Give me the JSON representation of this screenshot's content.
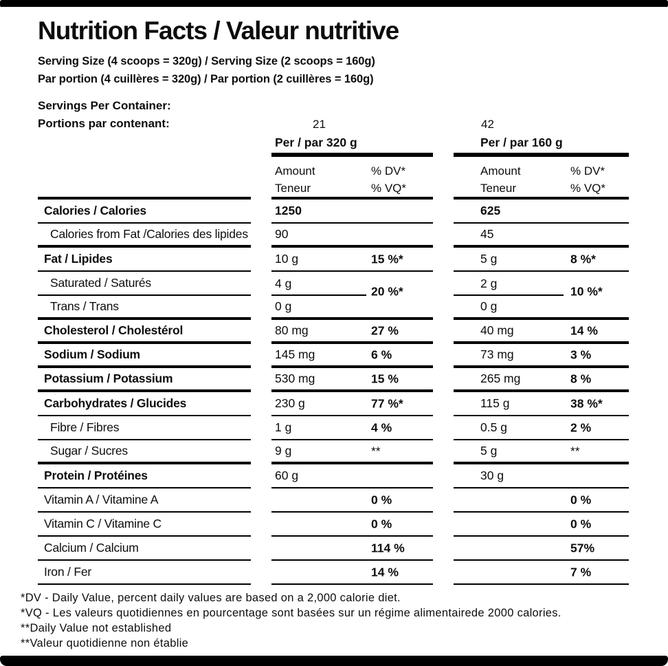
{
  "title": "Nutrition Facts / Valeur nutritive",
  "serving": {
    "line_en": "Serving Size (4 scoops = 320g) / Serving Size (2 scoops = 160g)",
    "line_fr": "Par portion (4 cuillères = 320g) / Par portion (2 cuillères = 160g)"
  },
  "servings": {
    "label_en": "Servings Per Container:",
    "label_fr": "Portions par contenant:",
    "col1": "21",
    "col2": "42"
  },
  "columns": {
    "col1": {
      "per": "Per / par 320 g",
      "amount_line1": "Amount",
      "amount_line2": "Teneur",
      "dv_line1": "% DV*",
      "dv_line2": "% VQ*"
    },
    "col2": {
      "per": "Per / par 160 g",
      "amount_line1": "Amount",
      "amount_line2": "Teneur",
      "dv_line1": "% DV*",
      "dv_line2": "% VQ*"
    }
  },
  "rows": [
    {
      "label": "Calories / Calories",
      "c1a": "1250",
      "c1d": "",
      "c2a": "625",
      "c2d": ""
    },
    {
      "label": "Calories from Fat /Calories des lipides",
      "c1a": "90",
      "c1d": "",
      "c2a": "45",
      "c2d": ""
    },
    {
      "label": "Fat / Lipides",
      "c1a": "10 g",
      "c1d": "15 %*",
      "c2a": "5 g",
      "c2d": "8 %*"
    },
    {
      "label": "Saturated / Saturés",
      "c1a": "4 g",
      "c1d": "20 %*",
      "c2a": "2 g",
      "c2d": "10 %*"
    },
    {
      "label": "Trans / Trans",
      "c1a": "0 g",
      "c1d": "",
      "c2a": "0 g",
      "c2d": ""
    },
    {
      "label": "Cholesterol / Cholestérol",
      "c1a": "80 mg",
      "c1d": "27 %",
      "c2a": "40 mg",
      "c2d": "14 %"
    },
    {
      "label": "Sodium / Sodium",
      "c1a": "145 mg",
      "c1d": "6 %",
      "c2a": "73 mg",
      "c2d": "3 %"
    },
    {
      "label": "Potassium / Potassium",
      "c1a": "530 mg",
      "c1d": "15 %",
      "c2a": "265 mg",
      "c2d": "8 %"
    },
    {
      "label": "Carbohydrates / Glucides",
      "c1a": "230 g",
      "c1d": "77 %*",
      "c2a": "115 g",
      "c2d": "38 %*"
    },
    {
      "label": "Fibre / Fibres",
      "c1a": "1 g",
      "c1d": "4 %",
      "c2a": "0.5 g",
      "c2d": "2 %"
    },
    {
      "label": "Sugar / Sucres",
      "c1a": "9 g",
      "c1d": "**",
      "c2a": "5 g",
      "c2d": "**"
    },
    {
      "label": "Protein / Protéines",
      "c1a": "60 g",
      "c1d": "",
      "c2a": "30 g",
      "c2d": ""
    },
    {
      "label": "Vitamin A / Vitamine A",
      "c1a": "",
      "c1d": "0 %",
      "c2a": "",
      "c2d": "0 %"
    },
    {
      "label": "Vitamin C / Vitamine C",
      "c1a": "",
      "c1d": "0 %",
      "c2a": "",
      "c2d": "0 %"
    },
    {
      "label": "Calcium / Calcium",
      "c1a": "",
      "c1d": "114 %",
      "c2a": "",
      "c2d": "57%"
    },
    {
      "label": "Iron / Fer",
      "c1a": "",
      "c1d": "14 %",
      "c2a": "",
      "c2d": "7 %"
    }
  ],
  "footnotes": [
    "*DV - Daily Value, percent daily values are based on a 2,000 calorie diet.",
    "*VQ - Les valeurs quotidiennes en pourcentage sont basées sur un régime alimentairede 2000 calories.",
    "**Daily Value not established",
    "**Valeur quotidienne non établie"
  ],
  "colors": {
    "text": "#0d0d0d",
    "border": "#000000",
    "background": "#ffffff"
  }
}
